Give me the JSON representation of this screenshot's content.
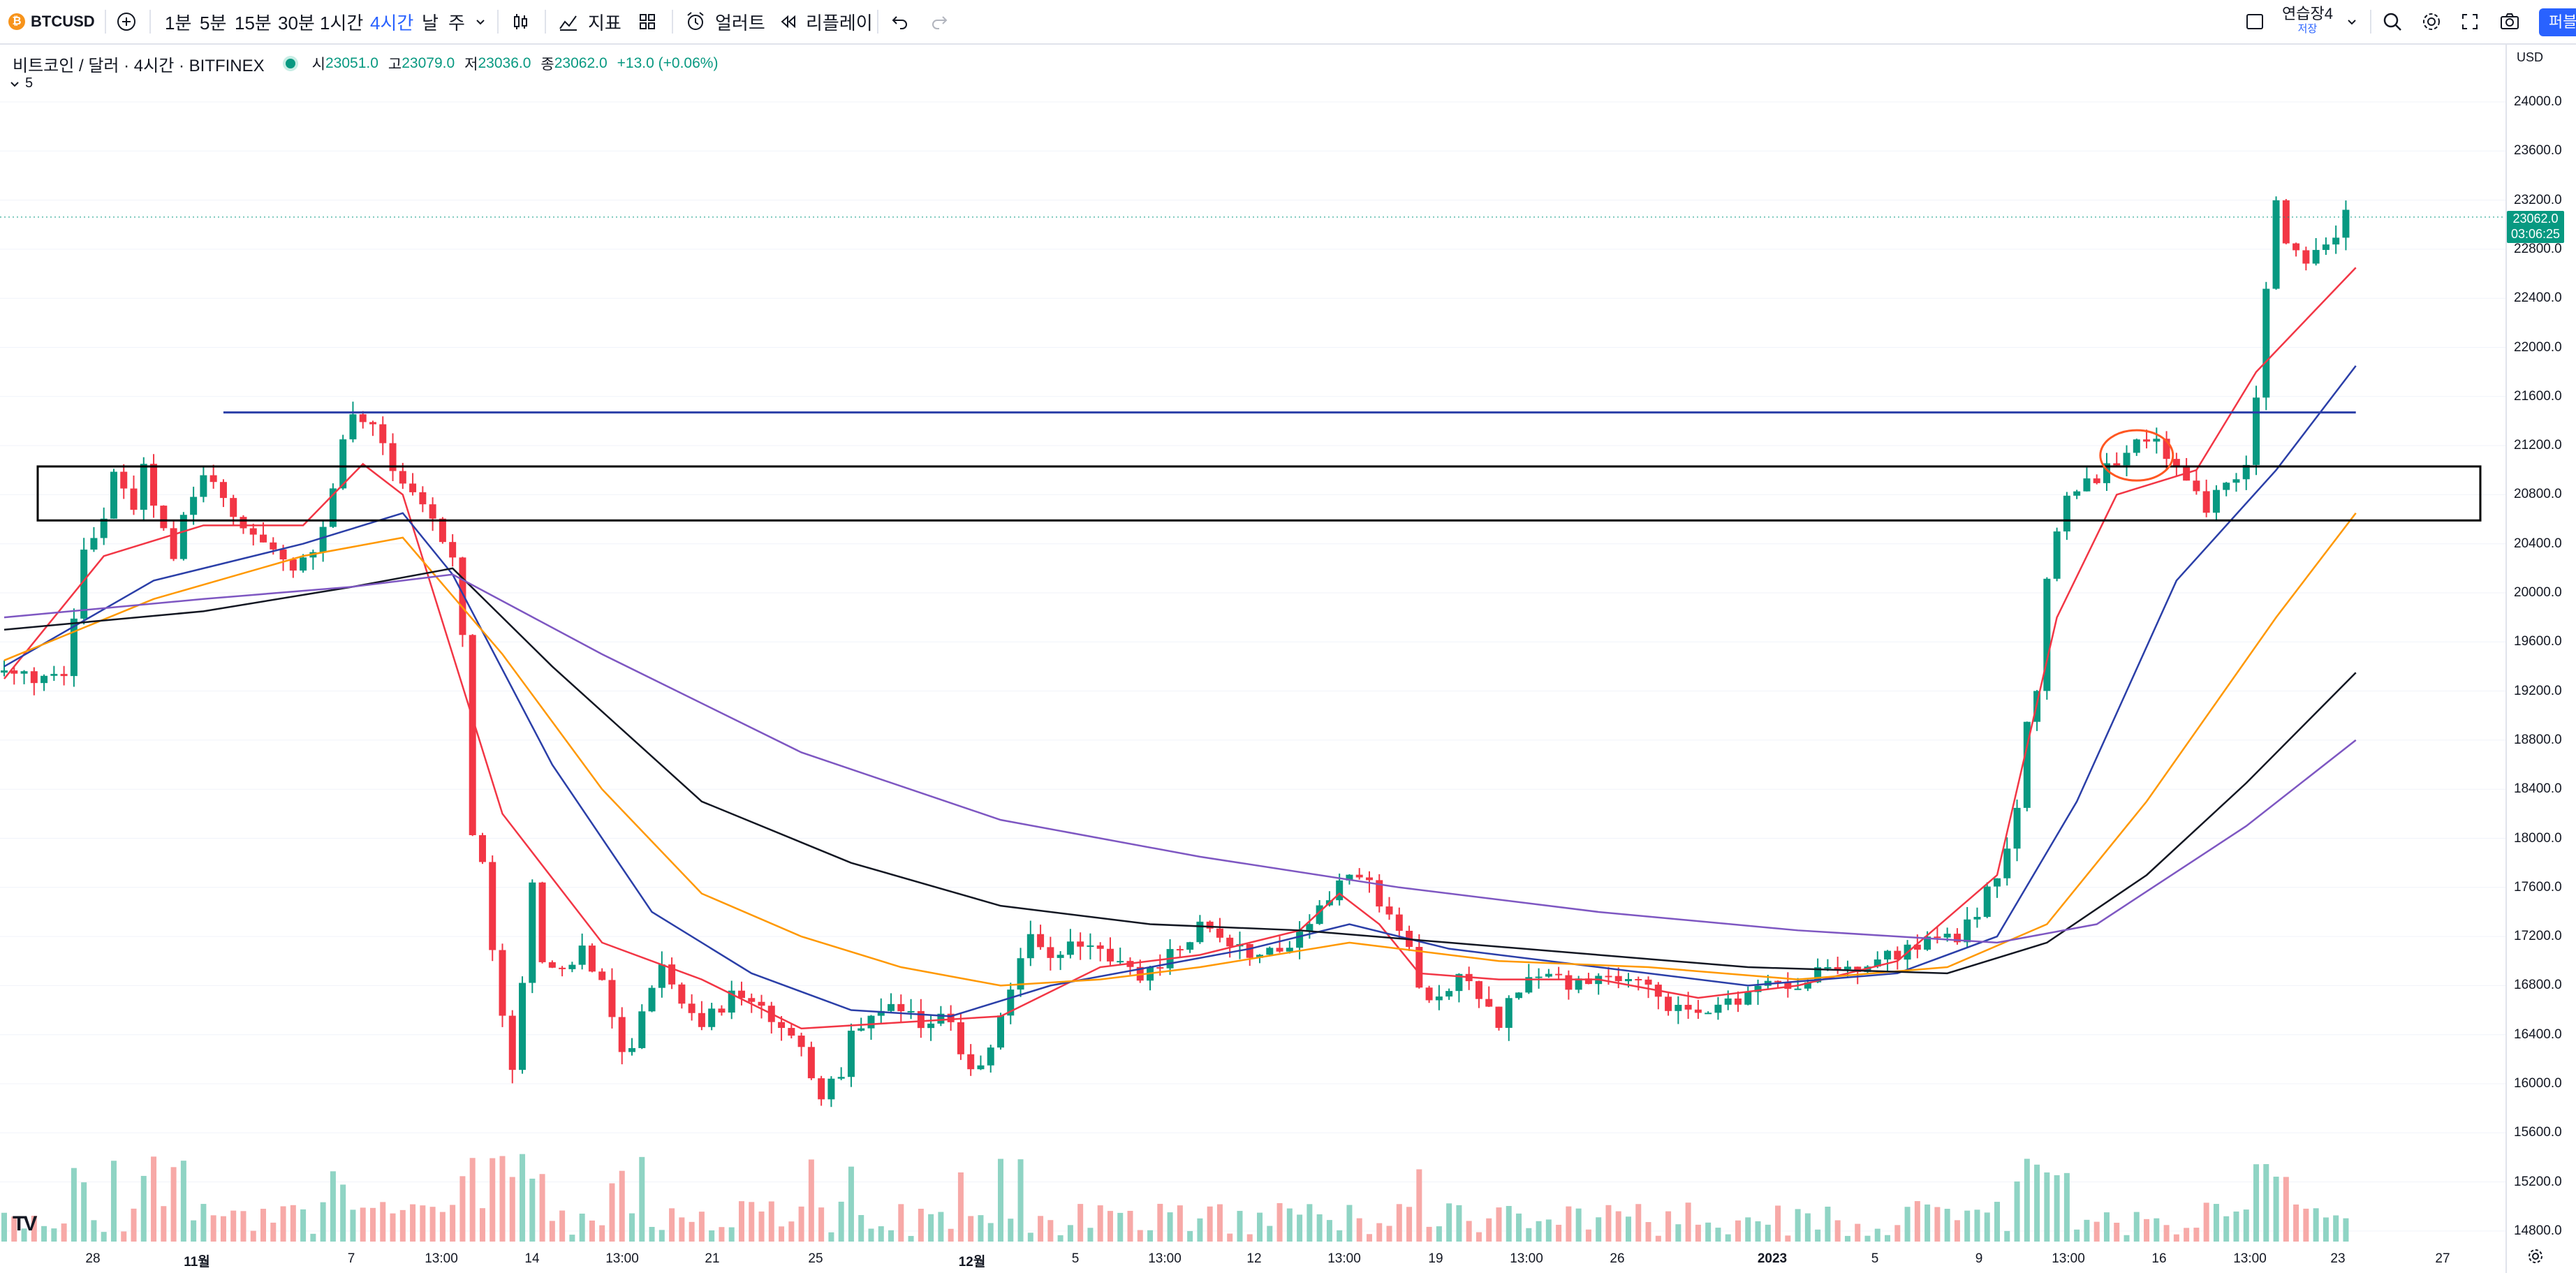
{
  "toolbar": {
    "symbol": "BTCUSD",
    "intervals": [
      "1분",
      "5분",
      "15분",
      "30분",
      "1시간",
      "4시간",
      "날",
      "주"
    ],
    "active_interval": "4시간",
    "indicators_label": "지표",
    "alert_label": "얼러트",
    "replay_label": "리플레이",
    "layout_name": "연습장4",
    "layout_status": "저장",
    "publish_label": "퍼블"
  },
  "legend": {
    "title": "비트코인 / 달러 · 4시간 · BITFINEX",
    "open_label": "시",
    "open": "23051.0",
    "high_label": "고",
    "high": "23079.0",
    "low_label": "저",
    "low": "23036.0",
    "close_label": "종",
    "close": "23062.0",
    "change": "+13.0 (+0.06%)",
    "indicator_count": "5"
  },
  "price_axis": {
    "currency": "USD",
    "ticks": [
      "24000.0",
      "23600.0",
      "23200.0",
      "22800.0",
      "22400.0",
      "22000.0",
      "21600.0",
      "21200.0",
      "20800.0",
      "20400.0",
      "20000.0",
      "19600.0",
      "19200.0",
      "18800.0",
      "18400.0",
      "18000.0",
      "17600.0",
      "17200.0",
      "16800.0",
      "16400.0",
      "16000.0",
      "15600.0",
      "15200.0",
      "14800.0"
    ],
    "current_price": "23062.0",
    "countdown": "03:06:25"
  },
  "time_axis": {
    "ticks": [
      "28",
      "11월",
      "7",
      "13:00",
      "14",
      "13:00",
      "21",
      "25",
      "12월",
      "5",
      "13:00",
      "12",
      "13:00",
      "19",
      "13:00",
      "26",
      "2023",
      "5",
      "9",
      "13:00",
      "16",
      "13:00",
      "23",
      "27"
    ]
  },
  "colors": {
    "up": "#089981",
    "down": "#f23645",
    "ema_red": "#f23645",
    "ema_blue": "#2b3fa8",
    "ema_orange": "#ff9800",
    "ema_black": "#131722",
    "ema_purple": "#7e57c2",
    "hline": "#2b3fa8",
    "box": "#000000",
    "circle": "#ff5722"
  },
  "chart_data": {
    "type": "candlestick",
    "title": "비트코인 / 달러 · 4시간 · BITFINEX",
    "ylim": [
      14700,
      24300
    ],
    "price_path": [
      [
        0,
        19350
      ],
      [
        3,
        19300
      ],
      [
        6,
        19300
      ],
      [
        8,
        20300
      ],
      [
        10,
        20650
      ],
      [
        11,
        20950
      ],
      [
        13,
        20700
      ],
      [
        14,
        21000
      ],
      [
        16,
        20500
      ],
      [
        17,
        20250
      ],
      [
        18,
        20600
      ],
      [
        20,
        20950
      ],
      [
        22,
        20800
      ],
      [
        24,
        20500
      ],
      [
        27,
        20400
      ],
      [
        29,
        20200
      ],
      [
        31,
        20300
      ],
      [
        33,
        20800
      ],
      [
        34,
        21200
      ],
      [
        35,
        21450
      ],
      [
        37,
        21350
      ],
      [
        39,
        21050
      ],
      [
        41,
        20800
      ],
      [
        43,
        20600
      ],
      [
        45,
        20300
      ],
      [
        46,
        19700
      ],
      [
        47,
        18000
      ],
      [
        48,
        17800
      ],
      [
        49,
        17100
      ],
      [
        50,
        16600
      ],
      [
        51,
        16100
      ],
      [
        52,
        16800
      ],
      [
        53,
        17600
      ],
      [
        54,
        17000
      ],
      [
        56,
        16900
      ],
      [
        58,
        17100
      ],
      [
        60,
        16800
      ],
      [
        62,
        16300
      ],
      [
        63,
        16300
      ],
      [
        65,
        16800
      ],
      [
        66,
        17000
      ],
      [
        68,
        16700
      ],
      [
        70,
        16500
      ],
      [
        73,
        16700
      ],
      [
        76,
        16600
      ],
      [
        78,
        16400
      ],
      [
        80,
        16300
      ],
      [
        82,
        15900
      ],
      [
        84,
        16100
      ],
      [
        85,
        16400
      ],
      [
        87,
        16500
      ],
      [
        89,
        16600
      ],
      [
        92,
        16500
      ],
      [
        94,
        16600
      ],
      [
        96,
        16300
      ],
      [
        97,
        16100
      ],
      [
        99,
        16300
      ],
      [
        101,
        16800
      ],
      [
        103,
        17200
      ],
      [
        105,
        17000
      ],
      [
        107,
        17100
      ],
      [
        109,
        17150
      ],
      [
        112,
        17000
      ],
      [
        114,
        16800
      ],
      [
        116,
        17000
      ],
      [
        118,
        17100
      ],
      [
        120,
        17300
      ],
      [
        122,
        17150
      ],
      [
        124,
        17100
      ],
      [
        126,
        17050
      ],
      [
        129,
        17100
      ],
      [
        131,
        17350
      ],
      [
        133,
        17500
      ],
      [
        135,
        17700
      ],
      [
        137,
        17600
      ],
      [
        139,
        17400
      ],
      [
        141,
        17100
      ],
      [
        142,
        16750
      ],
      [
        144,
        16700
      ],
      [
        146,
        16900
      ],
      [
        148,
        16700
      ],
      [
        150,
        16500
      ],
      [
        152,
        16800
      ],
      [
        154,
        16900
      ],
      [
        156,
        16850
      ],
      [
        158,
        16800
      ],
      [
        160,
        16850
      ],
      [
        162,
        16850
      ],
      [
        164,
        16800
      ],
      [
        166,
        16700
      ],
      [
        168,
        16600
      ],
      [
        170,
        16550
      ],
      [
        172,
        16650
      ],
      [
        174,
        16700
      ],
      [
        176,
        16800
      ],
      [
        178,
        16850
      ],
      [
        180,
        16800
      ],
      [
        182,
        16900
      ],
      [
        184,
        16950
      ],
      [
        186,
        16900
      ],
      [
        188,
        17000
      ],
      [
        190,
        17050
      ],
      [
        192,
        17100
      ],
      [
        194,
        17200
      ],
      [
        196,
        17200
      ],
      [
        198,
        17400
      ],
      [
        200,
        17700
      ],
      [
        202,
        18200
      ],
      [
        203,
        18900
      ],
      [
        204,
        19200
      ],
      [
        205,
        20100
      ],
      [
        206,
        20500
      ],
      [
        207,
        20800
      ],
      [
        209,
        20900
      ],
      [
        211,
        21000
      ],
      [
        213,
        21150
      ],
      [
        215,
        21250
      ],
      [
        217,
        21150
      ],
      [
        219,
        20900
      ],
      [
        221,
        20700
      ],
      [
        223,
        20900
      ],
      [
        225,
        21000
      ],
      [
        226,
        21600
      ],
      [
        227,
        22500
      ],
      [
        228,
        23200
      ],
      [
        229,
        22800
      ],
      [
        231,
        22700
      ],
      [
        233,
        22800
      ],
      [
        235,
        23062
      ]
    ],
    "ema_lines": {
      "red": [
        [
          0,
          19300
        ],
        [
          10,
          20300
        ],
        [
          20,
          20550
        ],
        [
          30,
          20550
        ],
        [
          36,
          21050
        ],
        [
          40,
          20800
        ],
        [
          45,
          19500
        ],
        [
          50,
          18200
        ],
        [
          60,
          17150
        ],
        [
          70,
          16850
        ],
        [
          80,
          16450
        ],
        [
          90,
          16500
        ],
        [
          100,
          16550
        ],
        [
          110,
          16950
        ],
        [
          120,
          17050
        ],
        [
          130,
          17250
        ],
        [
          134,
          17550
        ],
        [
          138,
          17300
        ],
        [
          142,
          16900
        ],
        [
          150,
          16850
        ],
        [
          160,
          16850
        ],
        [
          170,
          16700
        ],
        [
          180,
          16800
        ],
        [
          190,
          17000
        ],
        [
          200,
          17700
        ],
        [
          206,
          19800
        ],
        [
          212,
          20800
        ],
        [
          220,
          21000
        ],
        [
          226,
          21800
        ],
        [
          236,
          22650
        ]
      ],
      "blue": [
        [
          0,
          19400
        ],
        [
          15,
          20100
        ],
        [
          30,
          20400
        ],
        [
          40,
          20650
        ],
        [
          45,
          20150
        ],
        [
          55,
          18600
        ],
        [
          65,
          17400
        ],
        [
          75,
          16900
        ],
        [
          85,
          16600
        ],
        [
          95,
          16550
        ],
        [
          105,
          16800
        ],
        [
          115,
          16950
        ],
        [
          125,
          17100
        ],
        [
          135,
          17300
        ],
        [
          145,
          17100
        ],
        [
          160,
          16950
        ],
        [
          175,
          16800
        ],
        [
          190,
          16900
        ],
        [
          200,
          17200
        ],
        [
          208,
          18300
        ],
        [
          218,
          20100
        ],
        [
          228,
          21000
        ],
        [
          236,
          21850
        ]
      ],
      "orange": [
        [
          0,
          19450
        ],
        [
          15,
          19950
        ],
        [
          30,
          20300
        ],
        [
          40,
          20450
        ],
        [
          50,
          19500
        ],
        [
          60,
          18400
        ],
        [
          70,
          17550
        ],
        [
          80,
          17200
        ],
        [
          90,
          16950
        ],
        [
          100,
          16800
        ],
        [
          110,
          16850
        ],
        [
          120,
          16950
        ],
        [
          135,
          17150
        ],
        [
          150,
          17000
        ],
        [
          165,
          16950
        ],
        [
          180,
          16850
        ],
        [
          195,
          16950
        ],
        [
          205,
          17300
        ],
        [
          215,
          18300
        ],
        [
          228,
          19800
        ],
        [
          236,
          20650
        ]
      ],
      "black": [
        [
          0,
          19700
        ],
        [
          20,
          19850
        ],
        [
          35,
          20050
        ],
        [
          45,
          20200
        ],
        [
          55,
          19400
        ],
        [
          70,
          18300
        ],
        [
          85,
          17800
        ],
        [
          100,
          17450
        ],
        [
          115,
          17300
        ],
        [
          130,
          17250
        ],
        [
          145,
          17150
        ],
        [
          160,
          17050
        ],
        [
          175,
          16950
        ],
        [
          195,
          16900
        ],
        [
          205,
          17150
        ],
        [
          215,
          17700
        ],
        [
          225,
          18450
        ],
        [
          236,
          19350
        ]
      ],
      "purple": [
        [
          0,
          19800
        ],
        [
          20,
          19950
        ],
        [
          35,
          20050
        ],
        [
          45,
          20150
        ],
        [
          60,
          19500
        ],
        [
          80,
          18700
        ],
        [
          100,
          18150
        ],
        [
          120,
          17850
        ],
        [
          140,
          17600
        ],
        [
          160,
          17400
        ],
        [
          180,
          17250
        ],
        [
          200,
          17150
        ],
        [
          210,
          17300
        ],
        [
          225,
          18100
        ],
        [
          236,
          18800
        ]
      ]
    },
    "annotations": {
      "hline": 21470,
      "zone": [
        20590,
        21030
      ],
      "circle_center_price": 21120
    }
  }
}
